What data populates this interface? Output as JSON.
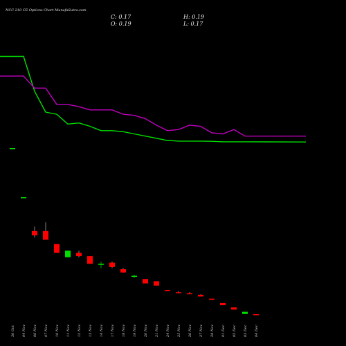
{
  "header": {
    "title": "NCC 210 CE Options Chart MunafaSutra.com",
    "close_label": "C: 0.17",
    "high_label": "H: 0.19",
    "open_label": "O: 0.19",
    "low_label": "L: 0.17"
  },
  "colors": {
    "background": "#000000",
    "up_candle": "#00e000",
    "down_candle": "#ff0000",
    "green_line": "#00e000",
    "magenta_line": "#c000c0",
    "text": "#e8e8e8"
  },
  "chart_data": {
    "type": "candlestick",
    "categories": [
      "30 Oct",
      "04 Nov",
      "06 Nov",
      "07 Nov",
      "10 Nov",
      "11 Nov",
      "12 Nov",
      "13 Nov",
      "14 Nov",
      "17 Nov",
      "18 Nov",
      "19 Nov",
      "20 Nov",
      "21 Nov",
      "24 Nov",
      "25 Nov",
      "26 Nov",
      "27 Nov",
      "28 Nov",
      "01 Dec",
      "02 Dec",
      "03 Dec",
      "04 Dec"
    ],
    "candles": [
      {
        "open": 7.8,
        "high": 7.8,
        "low": 7.8,
        "close": 7.8
      },
      {
        "open": 5.55,
        "high": 5.55,
        "low": 5.55,
        "close": 5.55
      },
      {
        "open": 4.0,
        "high": 4.2,
        "low": 3.7,
        "close": 3.8
      },
      {
        "open": 4.0,
        "high": 4.4,
        "low": 3.6,
        "close": 3.6
      },
      {
        "open": 3.4,
        "high": 3.4,
        "low": 3.0,
        "close": 3.0
      },
      {
        "open": 2.8,
        "high": 3.1,
        "low": 2.8,
        "close": 3.1
      },
      {
        "open": 3.0,
        "high": 3.1,
        "low": 2.8,
        "close": 2.85
      },
      {
        "open": 2.85,
        "high": 2.85,
        "low": 2.5,
        "close": 2.5
      },
      {
        "open": 2.45,
        "high": 2.6,
        "low": 2.3,
        "close": 2.5
      },
      {
        "open": 2.55,
        "high": 2.6,
        "low": 2.3,
        "close": 2.35
      },
      {
        "open": 2.25,
        "high": 2.3,
        "low": 2.1,
        "close": 2.1
      },
      {
        "open": 1.9,
        "high": 2.0,
        "low": 1.85,
        "close": 1.95
      },
      {
        "open": 1.8,
        "high": 1.8,
        "low": 1.6,
        "close": 1.6
      },
      {
        "open": 1.7,
        "high": 1.7,
        "low": 1.5,
        "close": 1.5
      },
      {
        "open": 1.3,
        "high": 1.3,
        "low": 1.25,
        "close": 1.25
      },
      {
        "open": 1.2,
        "high": 1.25,
        "low": 1.15,
        "close": 1.15
      },
      {
        "open": 1.15,
        "high": 1.2,
        "low": 1.12,
        "close": 1.12
      },
      {
        "open": 1.08,
        "high": 1.1,
        "low": 1.0,
        "close": 1.0
      },
      {
        "open": 0.9,
        "high": 0.9,
        "low": 0.85,
        "close": 0.85
      },
      {
        "open": 0.7,
        "high": 0.7,
        "low": 0.6,
        "close": 0.6
      },
      {
        "open": 0.5,
        "high": 0.5,
        "low": 0.4,
        "close": 0.4
      },
      {
        "open": 0.2,
        "high": 0.3,
        "low": 0.2,
        "close": 0.3
      },
      {
        "open": 0.19,
        "high": 0.19,
        "low": 0.17,
        "close": 0.17
      }
    ],
    "series": [
      {
        "values": [
          12.0,
          12.0,
          10.4,
          9.45,
          9.35,
          8.9,
          8.95,
          8.8,
          8.6,
          8.6,
          8.55,
          8.45,
          8.35,
          8.25,
          8.15,
          8.12,
          8.12,
          8.12,
          8.11,
          8.09,
          8.09,
          8.09,
          8.08
        ]
      },
      {
        "values": [
          11.1,
          11.1,
          10.55,
          10.55,
          9.8,
          9.8,
          9.7,
          9.55,
          9.55,
          9.55,
          9.35,
          9.3,
          9.15,
          8.85,
          8.6,
          8.65,
          8.85,
          8.8,
          8.5,
          8.45,
          8.65,
          8.35,
          8.35
        ]
      }
    ],
    "ylim": [
      0,
      13
    ],
    "grid": false
  }
}
